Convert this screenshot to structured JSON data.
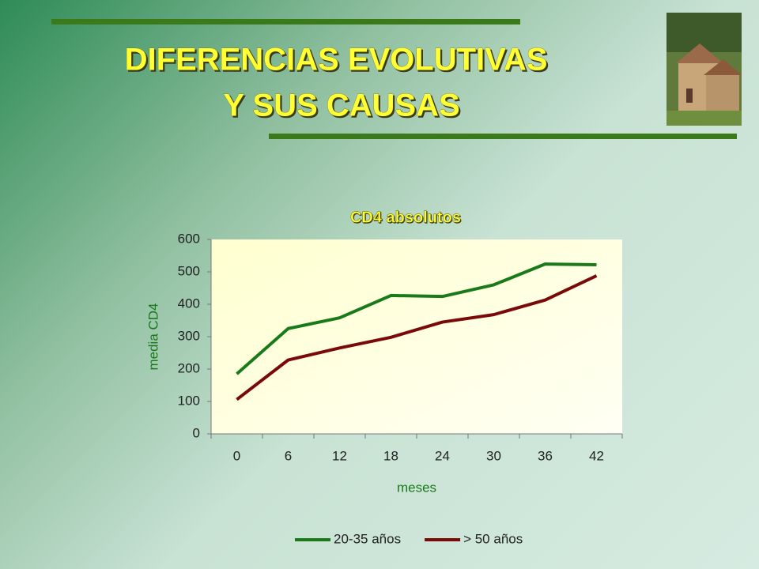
{
  "header": {
    "title": [
      "DIFERENCIAS EVOLUTIVAS",
      "Y SUS CAUSAS"
    ]
  },
  "chart_data": {
    "type": "line",
    "title": "CD4 absolutos",
    "x_label": "meses",
    "y_label": "media CD4",
    "categories": [
      "0",
      "6",
      "12",
      "18",
      "24",
      "30",
      "36",
      "42"
    ],
    "series": [
      {
        "name": "20-35 años",
        "color": "#1a7a1a",
        "values": [
          185,
          325,
          358,
          427,
          424,
          460,
          524,
          522
        ]
      },
      {
        "name": "> 50 años",
        "color": "#7a0a0a",
        "values": [
          106,
          228,
          265,
          298,
          345,
          368,
          413,
          488
        ]
      }
    ],
    "ylim": [
      0,
      600
    ],
    "yticks": [
      0,
      100,
      200,
      300,
      400,
      500,
      600
    ],
    "grid": false,
    "legend": "bottom"
  }
}
